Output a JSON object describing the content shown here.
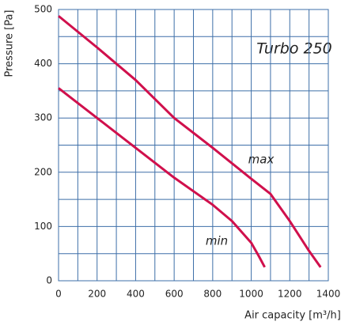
{
  "chart_data": {
    "type": "line",
    "title": "Turbo 250",
    "x_label": "Air capacity [m³/h]",
    "y_label": "Pressure [Pa]",
    "xlim": [
      0,
      1400
    ],
    "xticks": [
      0,
      200,
      400,
      600,
      800,
      1000,
      1200,
      1400
    ],
    "ylim": [
      0,
      500
    ],
    "yticks": [
      0,
      100,
      200,
      300,
      400,
      500
    ],
    "grid": true,
    "minor_grid": true,
    "series": [
      {
        "name": "max",
        "color": "#d0104c",
        "x": [
          0,
          200,
          400,
          600,
          800,
          1000,
          1100,
          1200,
          1300,
          1360
        ],
        "values": [
          488,
          430,
          370,
          300,
          245,
          188,
          160,
          110,
          55,
          25
        ]
      },
      {
        "name": "min",
        "color": "#d0104c",
        "x": [
          0,
          200,
          400,
          600,
          800,
          900,
          1000,
          1040,
          1070
        ],
        "values": [
          355,
          300,
          245,
          190,
          140,
          110,
          70,
          45,
          25
        ]
      }
    ]
  }
}
